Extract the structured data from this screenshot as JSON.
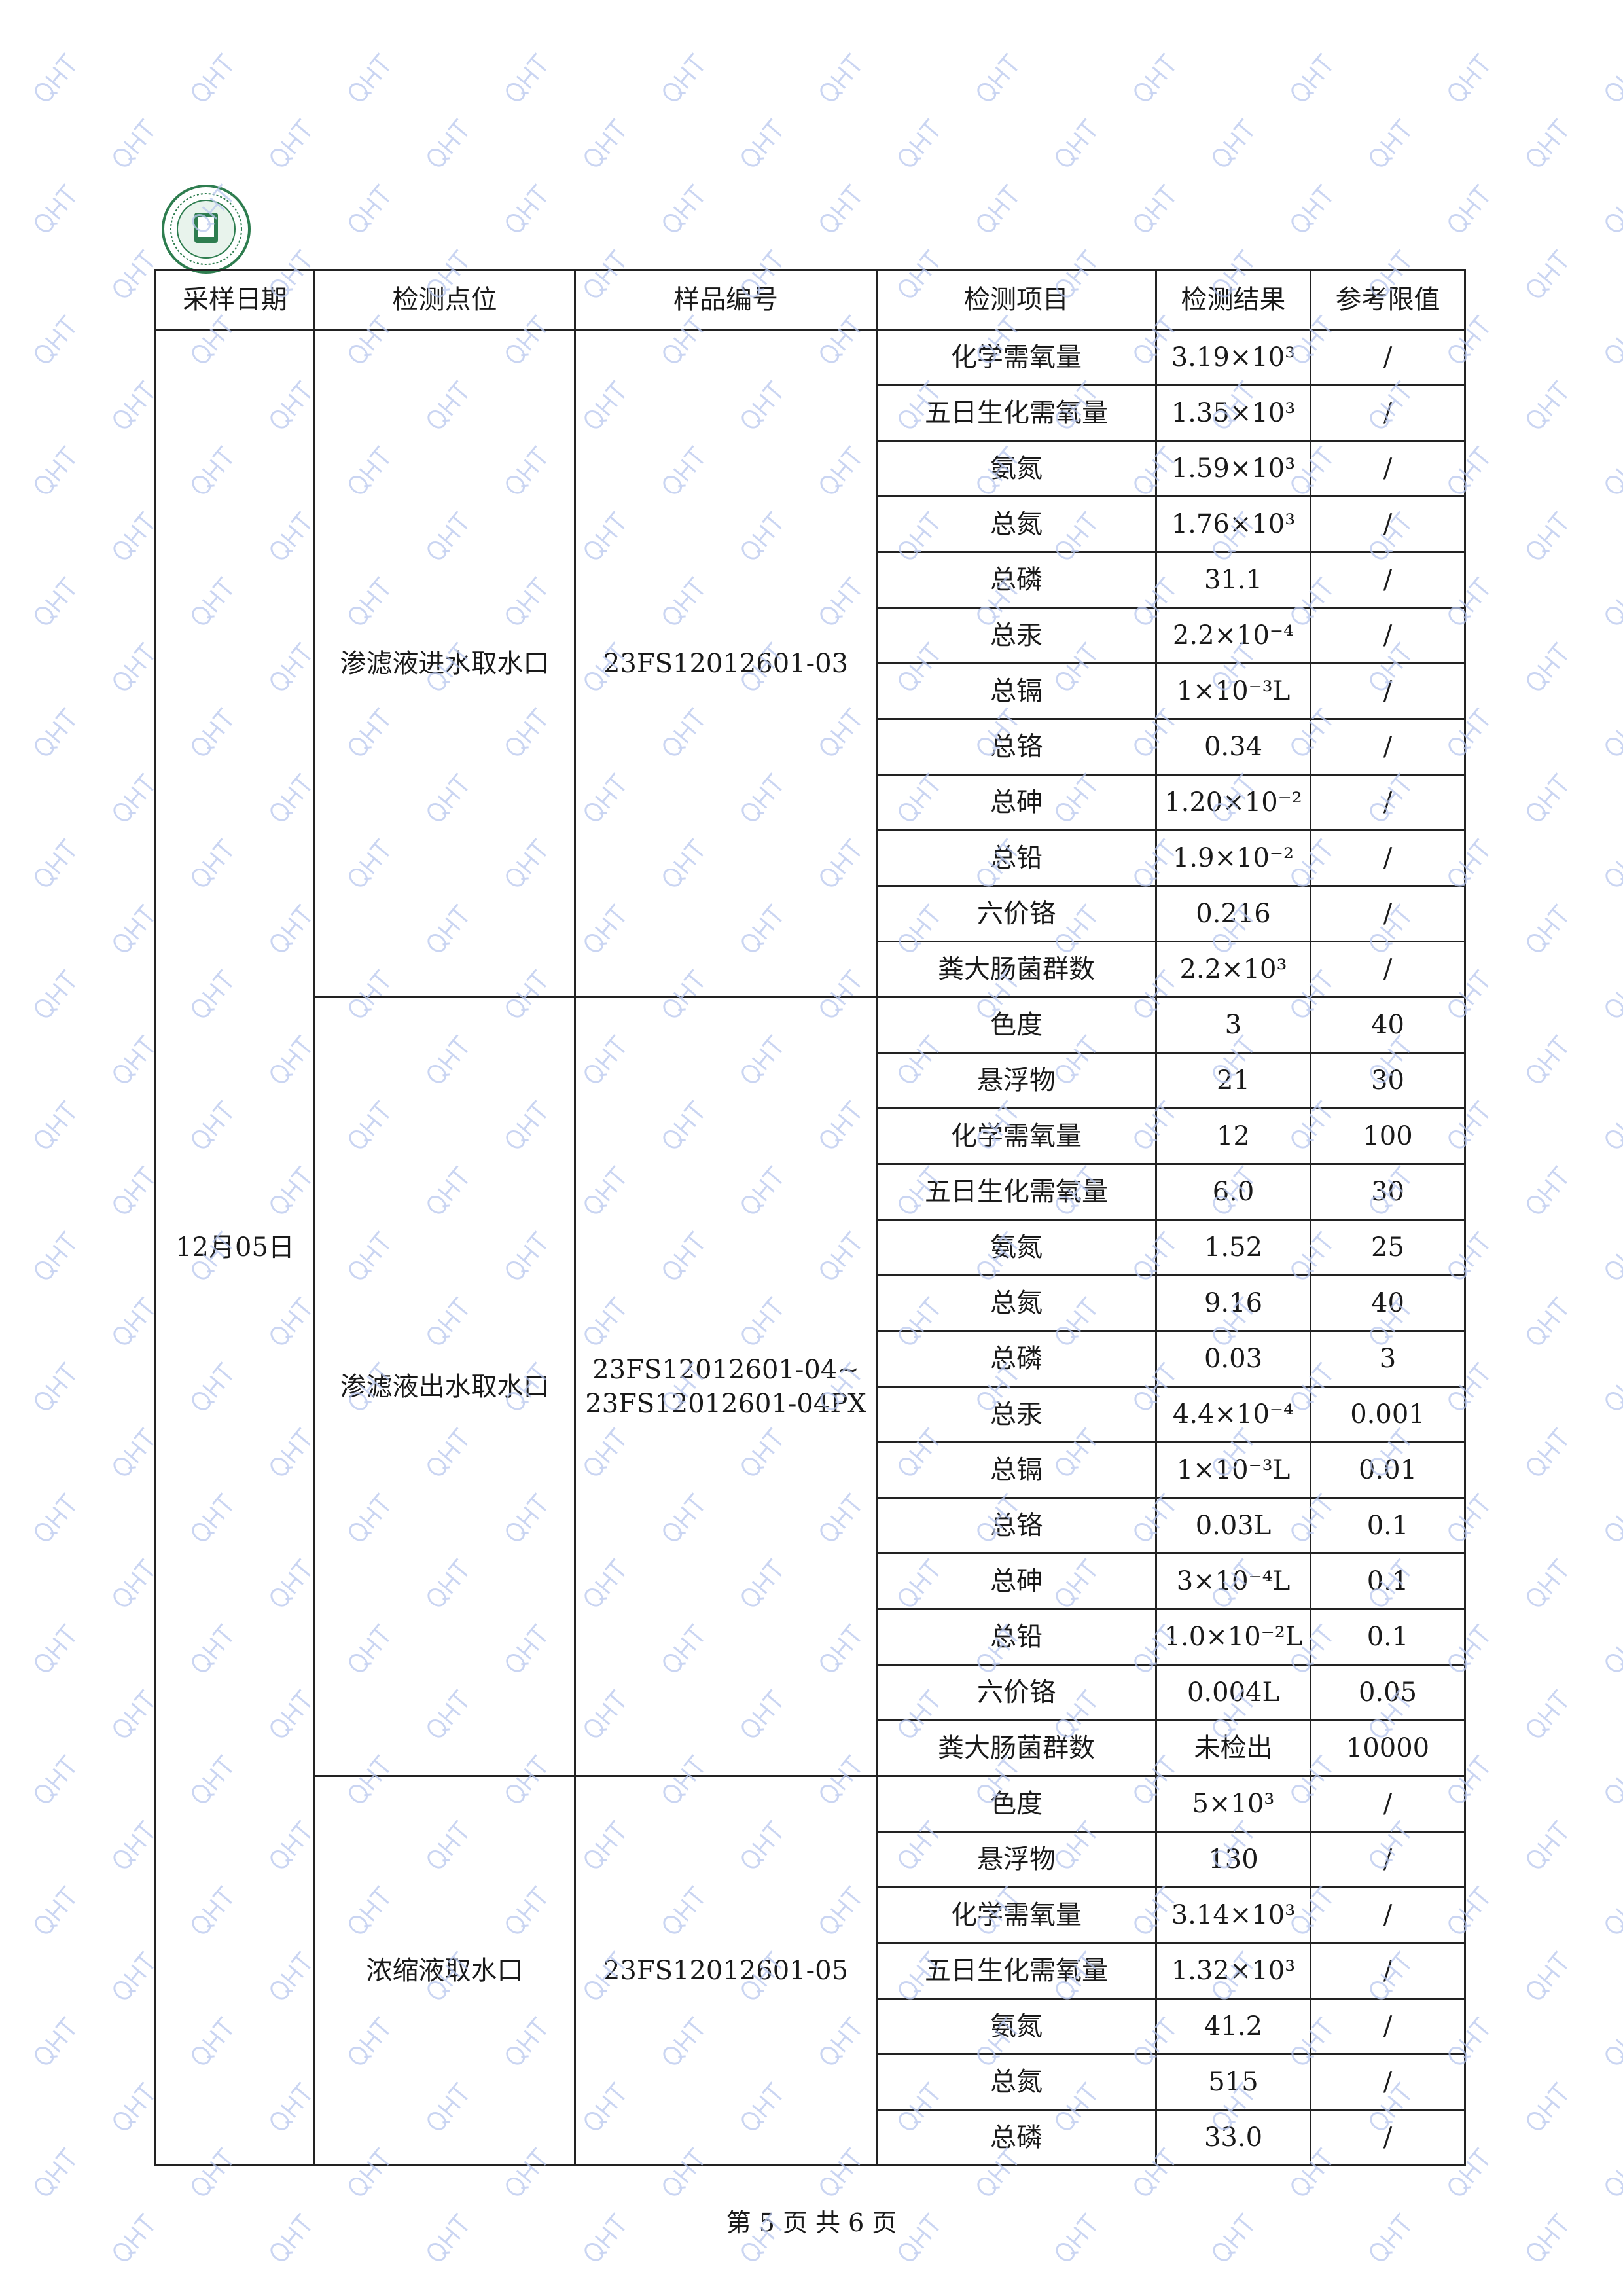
{
  "header": [
    "采样日期",
    "检测点位",
    "样品编号",
    "检测项目",
    "检测结果",
    "参考限值"
  ],
  "date": "12月05日",
  "groups": [
    {
      "location": "渗滤液进水取水口",
      "sample_id": "23FS12012601-03",
      "rows": [
        [
          "化学需氧量",
          "3.19×10³",
          "/"
        ],
        [
          "五日生化需氧量",
          "1.35×10³",
          "/"
        ],
        [
          "氨氮",
          "1.59×10³",
          "/"
        ],
        [
          "总氮",
          "1.76×10³",
          "/"
        ],
        [
          "总磷",
          "31.1",
          "/"
        ],
        [
          "总汞",
          "2.2×10⁻⁴",
          "/"
        ],
        [
          "总镉",
          "1×10⁻³L",
          "/"
        ],
        [
          "总铬",
          "0.34",
          "/"
        ],
        [
          "总砷",
          "1.20×10⁻²",
          "/"
        ],
        [
          "总铅",
          "1.9×10⁻²",
          "/"
        ],
        [
          "六价铬",
          "0.216",
          "/"
        ],
        [
          "粪大肠菌群数",
          "2.2×10³",
          "/"
        ]
      ]
    },
    {
      "location": "渗滤液出水取水口",
      "sample_id": "23FS12012601-04~\n23FS12012601-04PX",
      "rows": [
        [
          "色度",
          "3",
          "40"
        ],
        [
          "悬浮物",
          "21",
          "30"
        ],
        [
          "化学需氧量",
          "12",
          "100"
        ],
        [
          "五日生化需氧量",
          "6.0",
          "30"
        ],
        [
          "氨氮",
          "1.52",
          "25"
        ],
        [
          "总氮",
          "9.16",
          "40"
        ],
        [
          "总磷",
          "0.03",
          "3"
        ],
        [
          "总汞",
          "4.4×10⁻⁴",
          "0.001"
        ],
        [
          "总镉",
          "1×10⁻³L",
          "0.01"
        ],
        [
          "总铬",
          "0.03L",
          "0.1"
        ],
        [
          "总砷",
          "3×10⁻⁴L",
          "0.1"
        ],
        [
          "总铅",
          "1.0×10⁻²L",
          "0.1"
        ],
        [
          "六价铬",
          "0.004L",
          "0.05"
        ],
        [
          "粪大肠菌群数",
          "未检出",
          "10000"
        ]
      ]
    },
    {
      "location": "浓缩液取水口",
      "sample_id": "23FS12012601-05",
      "rows": [
        [
          "色度",
          "5×10³",
          "/"
        ],
        [
          "悬浮物",
          "130",
          "/"
        ],
        [
          "化学需氧量",
          "3.14×10³",
          "/"
        ],
        [
          "五日生化需氧量",
          "1.32×10³",
          "/"
        ],
        [
          "氨氮",
          "41.2",
          "/"
        ],
        [
          "总氮",
          "515",
          "/"
        ],
        [
          "总磷",
          "33.0",
          "/"
        ]
      ]
    }
  ],
  "footer": "第 5 页 共 6 页",
  "watermark": "QHT",
  "colors": {
    "watermark": "#b9c8ee",
    "logo": "#2e7d4f"
  }
}
